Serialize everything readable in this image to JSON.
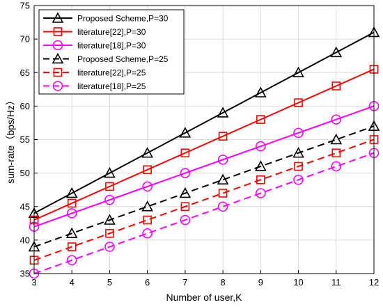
{
  "chart_data": {
    "type": "line",
    "title": "",
    "xlabel": "Number of user,K",
    "ylabel": "sum-rate（bps/Hz）",
    "x": [
      3,
      4,
      5,
      6,
      7,
      8,
      9,
      10,
      11,
      12
    ],
    "xlim": [
      3,
      12
    ],
    "ylim": [
      35,
      75
    ],
    "xticks": [
      3,
      4,
      5,
      6,
      7,
      8,
      9,
      10,
      11,
      12
    ],
    "yticks": [
      35,
      40,
      45,
      50,
      55,
      60,
      65,
      70,
      75
    ],
    "grid": true,
    "legend_position": "top-left",
    "series": [
      {
        "name": "Proposed Scheme,P=30",
        "color": "#000000",
        "marker": "triangle",
        "dash": "solid",
        "values": [
          44,
          47,
          50,
          53,
          56,
          59,
          62,
          65,
          68,
          71
        ]
      },
      {
        "name": "literature[22],P=30",
        "color": "#ff0000",
        "marker": "square",
        "dash": "solid",
        "values": [
          43,
          45.5,
          48,
          50.5,
          53,
          55.5,
          58,
          60.5,
          63,
          65.5
        ]
      },
      {
        "name": "literature[18],P=30",
        "color": "#ff00ff",
        "marker": "circle",
        "dash": "solid",
        "values": [
          42,
          44,
          46,
          48,
          50,
          52,
          54,
          56,
          58,
          60
        ]
      },
      {
        "name": "Proposed Scheme,P=25",
        "color": "#000000",
        "marker": "triangle",
        "dash": "dashed",
        "values": [
          39,
          41,
          43,
          45,
          47,
          49,
          51,
          53,
          55,
          57
        ]
      },
      {
        "name": "literature[22],P=25",
        "color": "#ff0000",
        "marker": "square",
        "dash": "dashed",
        "values": [
          37,
          39,
          41,
          43,
          45,
          47,
          49,
          51,
          53,
          55
        ]
      },
      {
        "name": "literature[18],P=25",
        "color": "#ff00ff",
        "marker": "circle",
        "dash": "dashed",
        "values": [
          35,
          37,
          39,
          41,
          43,
          45,
          47,
          49,
          51,
          53
        ]
      }
    ]
  }
}
